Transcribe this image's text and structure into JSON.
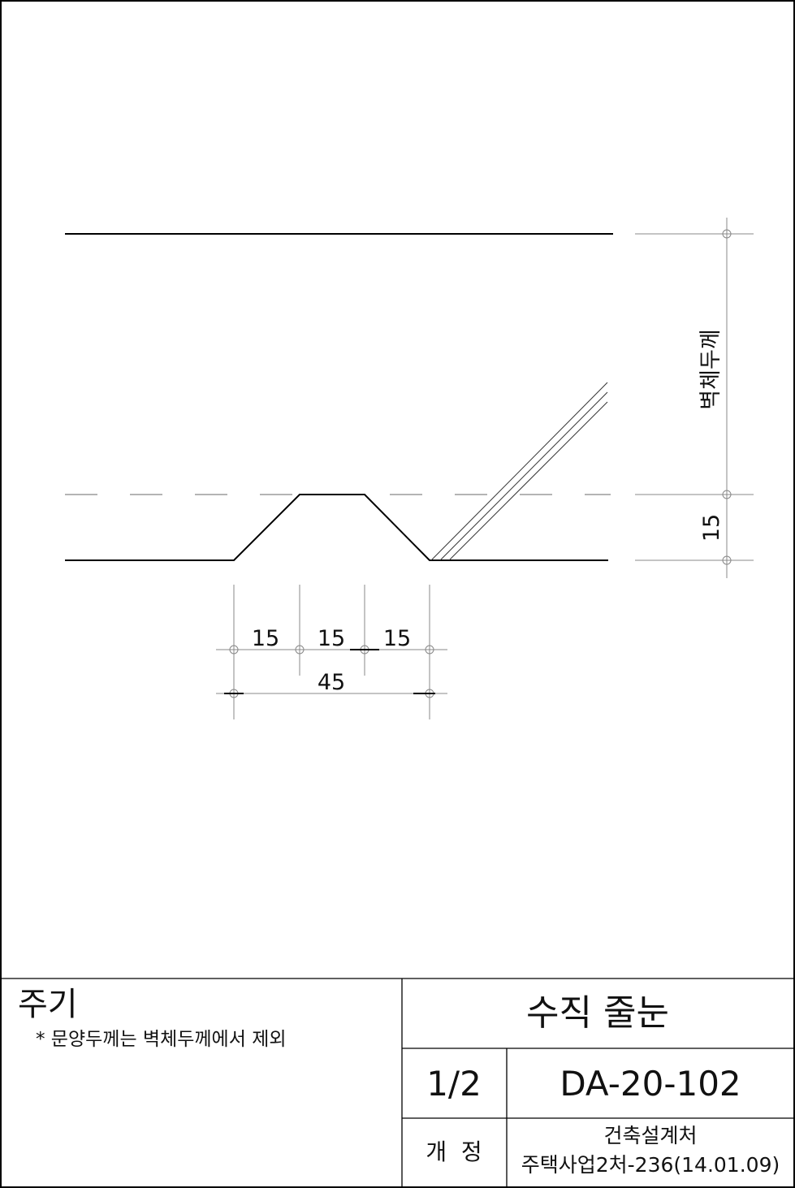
{
  "drawing": {
    "dimensions": {
      "wall_thickness_label": "벽체두께",
      "groove_depth_label": "15",
      "segment_labels": [
        "15",
        "15",
        "15"
      ],
      "total_label": "45"
    }
  },
  "title_block": {
    "notes_title": "주기",
    "notes_text": "* 문양두께는 벽체두께에서 제외",
    "title": "수직 줄눈",
    "sheet": "1/2",
    "drawing_number": "DA-20-102",
    "revision_label": "개  정",
    "issuer": "건축설계처",
    "revision_ref": "주택사업2처-236(14.01.09)"
  }
}
